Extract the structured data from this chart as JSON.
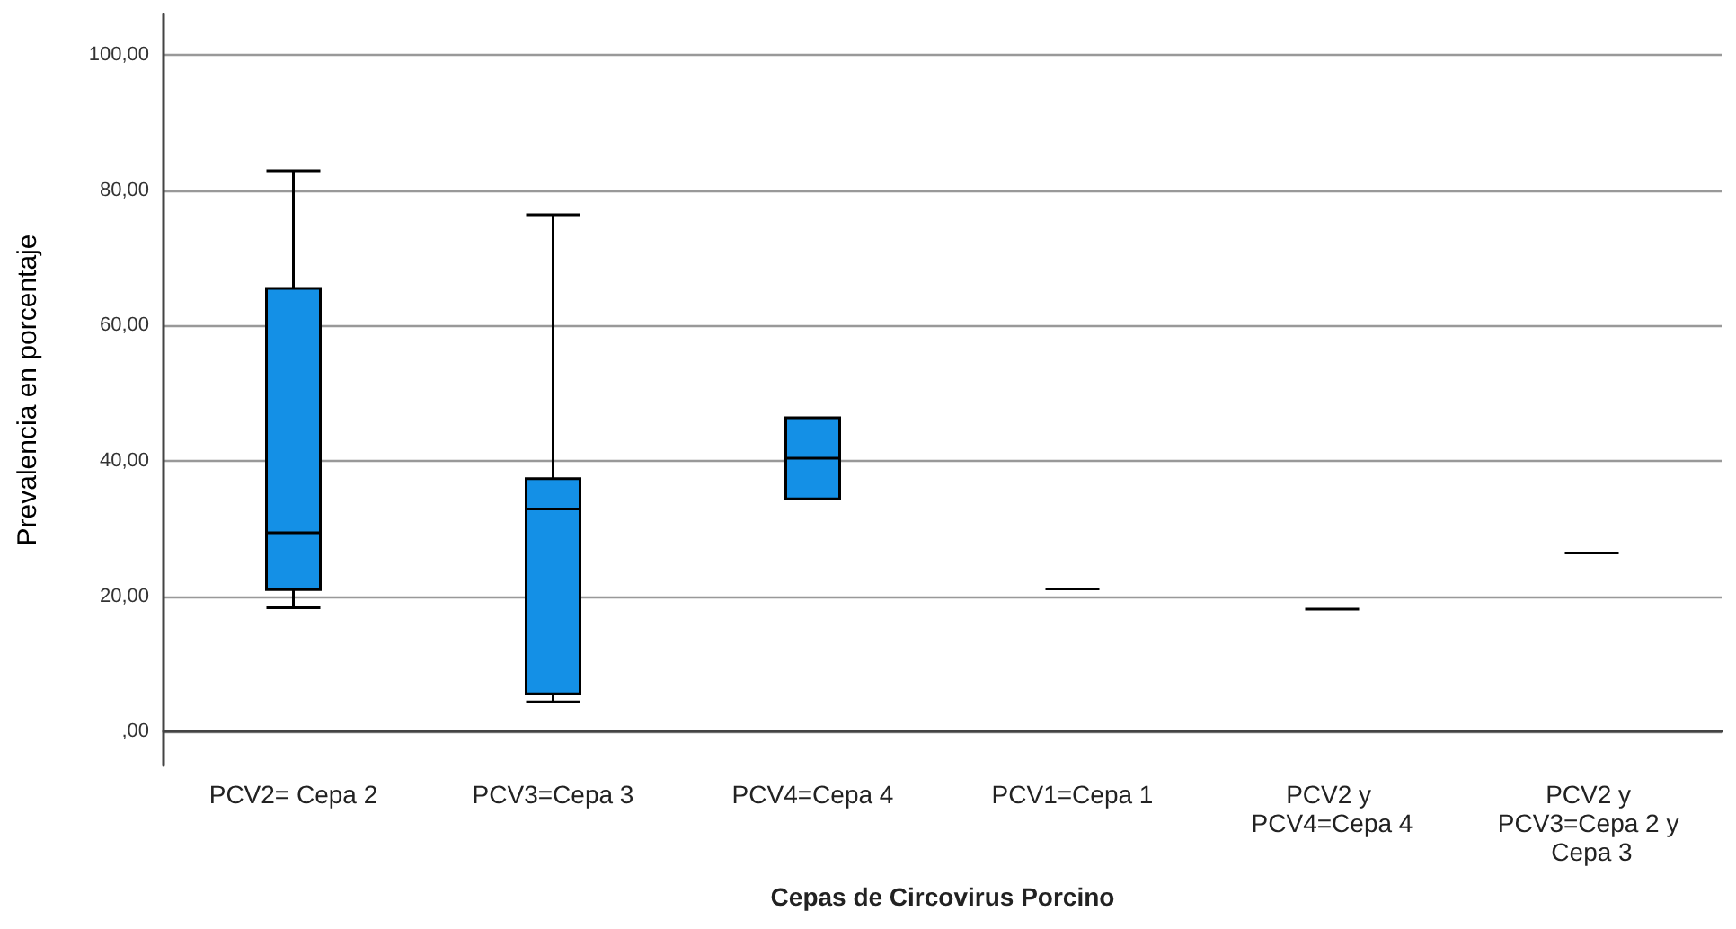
{
  "chart_data": {
    "type": "box",
    "xlabel": "Cepas de Circovirus Porcino",
    "ylabel": "Prevalencia en porcentaje",
    "categories": [
      "PCV2= Cepa 2",
      "PCV3=Cepa 3",
      "PCV4=Cepa 4",
      "PCV1=Cepa 1",
      "PCV2 y PCV4=Cepa 4",
      "PCV2 y PCV3=Cepa 2 y Cepa 3"
    ],
    "series": [
      {
        "colors": [
          "#1490e6",
          "#1490e6",
          "#1490e6",
          "#000000",
          "#000000",
          "#000000"
        ],
        "boxes": [
          {
            "low": 18.3,
            "q1": 21.0,
            "median": 29.4,
            "q3": 65.5,
            "high": 82.9
          },
          {
            "low": 4.4,
            "q1": 5.6,
            "median": 32.9,
            "q3": 37.4,
            "high": 76.4
          },
          {
            "low": 34.4,
            "q1": 34.4,
            "median": 40.4,
            "q3": 46.4,
            "high": 46.4
          },
          {
            "low": 21.1,
            "q1": 21.1,
            "median": 21.1,
            "q3": 21.1,
            "high": 21.1
          },
          {
            "low": 18.1,
            "q1": 18.1,
            "median": 18.1,
            "q3": 18.1,
            "high": 18.1
          },
          {
            "low": 26.4,
            "q1": 26.4,
            "median": 26.4,
            "q3": 26.4,
            "high": 26.4
          }
        ]
      }
    ],
    "ylim": [
      -5,
      106
    ],
    "yticks": [
      {
        "value": 0,
        "label": ",00"
      },
      {
        "value": 20,
        "label": "20,00"
      },
      {
        "value": 40,
        "label": "40,00"
      },
      {
        "value": 60,
        "label": "60,00"
      },
      {
        "value": 80,
        "label": "80,00"
      },
      {
        "value": 100,
        "label": "100,00"
      }
    ],
    "grid": "y"
  }
}
